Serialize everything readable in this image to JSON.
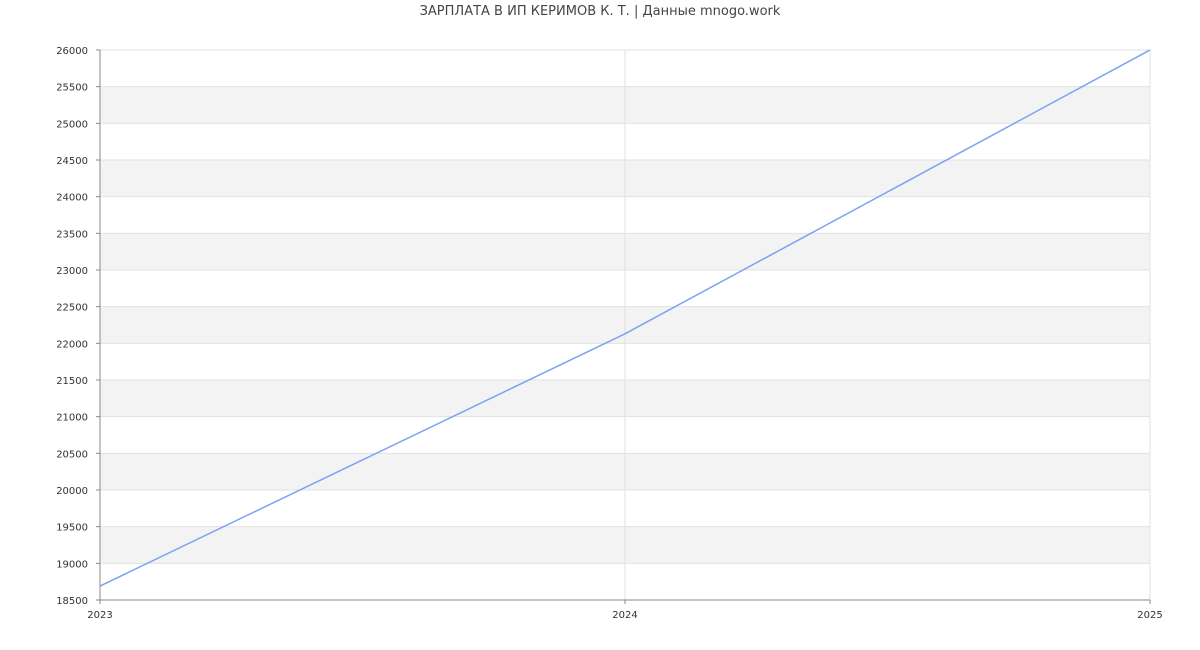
{
  "chart_data": {
    "type": "line",
    "title": "ЗАРПЛАТА В ИП КЕРИМОВ К. Т. | Данные mnogo.work",
    "x": [
      "2023",
      "2024",
      "2025"
    ],
    "series": [
      {
        "values": [
          18690,
          22130,
          26000
        ],
        "color": "#7aa2f4"
      }
    ],
    "ylim": [
      18500,
      26000
    ],
    "yticks": [
      18500,
      19000,
      19500,
      20000,
      20500,
      21000,
      21500,
      22000,
      22500,
      23000,
      23500,
      24000,
      24500,
      25000,
      25500,
      26000
    ],
    "grid": true,
    "band_color": "#f3f3f3",
    "grid_color": "#e2e2e2"
  }
}
